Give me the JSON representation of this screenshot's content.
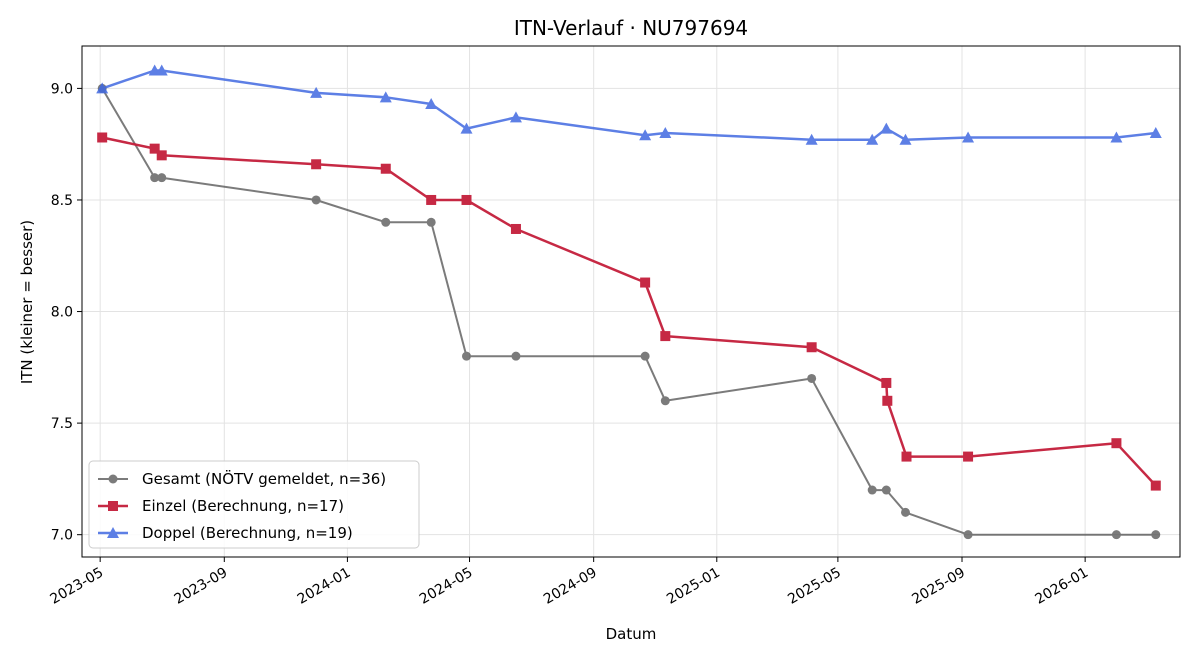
{
  "chart_data": {
    "type": "line",
    "title": "ITN-Verlauf · NU797694",
    "xlabel": "Datum",
    "ylabel": "ITN  (kleiner = besser)",
    "x_range": [
      "2023-04-13",
      "2026-04-05"
    ],
    "ylim": [
      6.9,
      9.19
    ],
    "x_ticks": [
      "2023-05",
      "2023-09",
      "2024-01",
      "2024-05",
      "2024-09",
      "2025-01",
      "2025-05",
      "2025-09",
      "2026-01"
    ],
    "y_ticks": [
      "7.0",
      "7.5",
      "8.0",
      "8.5",
      "9.0"
    ],
    "grid": true,
    "legend_position": "lower-left",
    "series": [
      {
        "name": "Gesamt (NÖTV gemeldet, n=36)",
        "color": "#444444",
        "marker": "circle",
        "points": [
          [
            "2023-05-03",
            9.0
          ],
          [
            "2023-06-24",
            8.6
          ],
          [
            "2023-07-01",
            8.6
          ],
          [
            "2023-12-01",
            8.5
          ],
          [
            "2024-02-08",
            8.4
          ],
          [
            "2024-03-24",
            8.4
          ],
          [
            "2024-04-28",
            7.8
          ],
          [
            "2024-06-16",
            7.8
          ],
          [
            "2024-10-22",
            7.8
          ],
          [
            "2024-11-11",
            7.6
          ],
          [
            "2025-04-05",
            7.7
          ],
          [
            "2025-06-04",
            7.2
          ],
          [
            "2025-06-18",
            7.2
          ],
          [
            "2025-07-07",
            7.1
          ],
          [
            "2025-09-07",
            7.0
          ],
          [
            "2026-02-01",
            7.0
          ],
          [
            "2026-03-12",
            7.0
          ]
        ]
      },
      {
        "name": "Einzel (Berechnung, n=17)",
        "color": "#c41e3a",
        "marker": "square",
        "points": [
          [
            "2023-05-03",
            8.78
          ],
          [
            "2023-06-24",
            8.73
          ],
          [
            "2023-07-01",
            8.7
          ],
          [
            "2023-12-01",
            8.66
          ],
          [
            "2024-02-08",
            8.64
          ],
          [
            "2024-03-24",
            8.5
          ],
          [
            "2024-04-28",
            8.5
          ],
          [
            "2024-06-16",
            8.37
          ],
          [
            "2024-10-22",
            8.13
          ],
          [
            "2024-11-11",
            7.89
          ],
          [
            "2025-04-05",
            7.84
          ],
          [
            "2025-06-18",
            7.68
          ],
          [
            "2025-06-19",
            7.6
          ],
          [
            "2025-07-08",
            7.35
          ],
          [
            "2025-09-07",
            7.35
          ],
          [
            "2026-02-01",
            7.41
          ],
          [
            "2026-03-12",
            7.22
          ]
        ]
      },
      {
        "name": "Doppel (Berechnung, n=19)",
        "color": "#4169e1",
        "marker": "triangle",
        "points": [
          [
            "2023-05-03",
            9.0
          ],
          [
            "2023-06-24",
            9.08
          ],
          [
            "2023-07-01",
            9.08
          ],
          [
            "2023-12-01",
            8.98
          ],
          [
            "2024-02-08",
            8.96
          ],
          [
            "2024-03-24",
            8.93
          ],
          [
            "2024-04-28",
            8.82
          ],
          [
            "2024-06-16",
            8.87
          ],
          [
            "2024-10-22",
            8.79
          ],
          [
            "2024-11-11",
            8.8
          ],
          [
            "2025-04-05",
            8.77
          ],
          [
            "2025-06-04",
            8.77
          ],
          [
            "2025-06-18",
            8.82
          ],
          [
            "2025-07-07",
            8.77
          ],
          [
            "2025-09-07",
            8.78
          ],
          [
            "2026-02-01",
            8.78
          ],
          [
            "2026-03-12",
            8.8
          ]
        ]
      }
    ]
  }
}
